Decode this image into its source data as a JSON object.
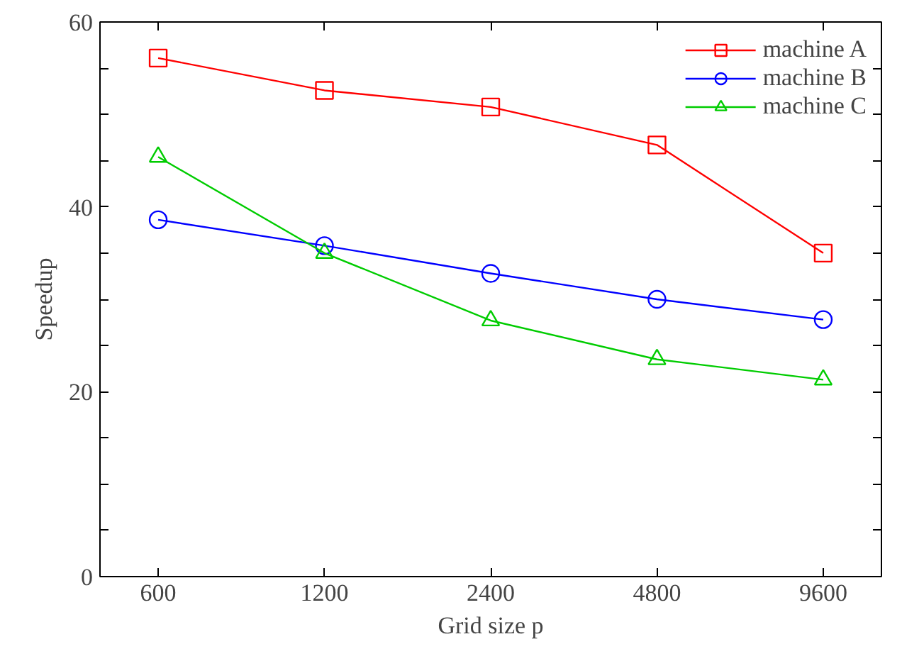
{
  "chart_data": {
    "type": "line",
    "xlabel": "Grid size p",
    "ylabel": "Speedup",
    "categories": [
      "600",
      "1200",
      "2400",
      "4800",
      "9600"
    ],
    "series": [
      {
        "name": "machine A",
        "color": "#ff0000",
        "marker": "square",
        "values": [
          56.1,
          52.6,
          50.8,
          46.7,
          35.0
        ]
      },
      {
        "name": "machine B",
        "color": "#0000ff",
        "marker": "circle",
        "values": [
          38.6,
          35.8,
          32.8,
          30.0,
          27.8
        ]
      },
      {
        "name": "machine C",
        "color": "#00cc00",
        "marker": "triangle",
        "values": [
          45.4,
          35.0,
          27.7,
          23.5,
          21.3
        ]
      }
    ],
    "ylim": [
      0,
      60
    ],
    "yticks": [
      0,
      {
        "value": 5,
        "label": null
      },
      {
        "value": 10,
        "label": null
      },
      {
        "value": 15,
        "label": null
      },
      20,
      {
        "value": 25,
        "label": null
      },
      {
        "value": 30,
        "label": null
      },
      {
        "value": 35,
        "label": null
      },
      40,
      {
        "value": 45,
        "label": null
      },
      {
        "value": 50,
        "label": null
      },
      {
        "value": 55,
        "label": null
      },
      60
    ],
    "legend": "top right",
    "grid": false,
    "line_style": "solid"
  }
}
